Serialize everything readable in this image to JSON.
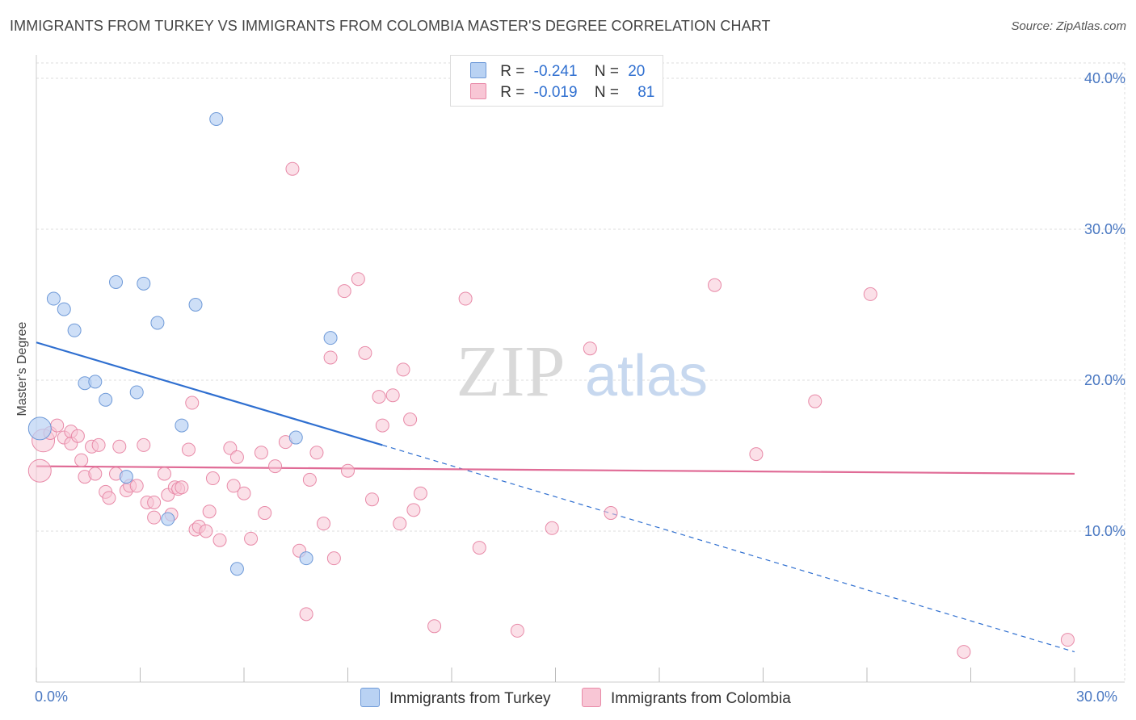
{
  "title": "IMMIGRANTS FROM TURKEY VS IMMIGRANTS FROM COLOMBIA MASTER'S DEGREE CORRELATION CHART",
  "source": "Source: ZipAtlas.com",
  "watermark": {
    "zip": "ZIP",
    "atlas": "atlas"
  },
  "colors": {
    "turkey_fill": "#b9d2f3",
    "turkey_stroke": "#6f9ad8",
    "turkey_line": "#2f6fd0",
    "colombia_fill": "#f8c6d5",
    "colombia_stroke": "#e88aa8",
    "colombia_line": "#e06b96",
    "grid": "#dddddd",
    "tick_text": "#4a78c2"
  },
  "legend": {
    "turkey": {
      "r_label": "R =",
      "r_value": "-0.241",
      "n_label": "N =",
      "n_value": "20"
    },
    "colombia": {
      "r_label": "R =",
      "r_value": "-0.019",
      "n_label": "N =",
      "n_value": "81"
    }
  },
  "chart_data": {
    "type": "scatter",
    "ylabel": "Master's Degree",
    "xlabel": "",
    "xlim": [
      0,
      30
    ],
    "ylim": [
      0,
      40
    ],
    "x_tick_labels": [
      "0.0%",
      "30.0%"
    ],
    "y_ticks": [
      10,
      20,
      30,
      40
    ],
    "y_tick_labels": [
      "10.0%",
      "20.0%",
      "30.0%",
      "40.0%"
    ],
    "grid": true,
    "legend_position": "top-center and bottom",
    "series": [
      {
        "name": "Immigrants from Turkey",
        "points": [
          [
            0.1,
            16.8
          ],
          [
            0.5,
            25.4
          ],
          [
            0.8,
            24.7
          ],
          [
            1.1,
            23.3
          ],
          [
            1.4,
            19.8
          ],
          [
            1.7,
            19.9
          ],
          [
            2.0,
            18.7
          ],
          [
            2.3,
            26.5
          ],
          [
            2.6,
            13.6
          ],
          [
            2.9,
            19.2
          ],
          [
            3.1,
            26.4
          ],
          [
            3.5,
            23.8
          ],
          [
            3.8,
            10.8
          ],
          [
            4.2,
            17.0
          ],
          [
            4.6,
            25.0
          ],
          [
            5.2,
            37.3
          ],
          [
            5.8,
            7.5
          ],
          [
            7.5,
            16.2
          ],
          [
            7.8,
            8.2
          ],
          [
            8.5,
            22.8
          ]
        ],
        "trend": {
          "x0": 0,
          "y0": 22.5,
          "x1": 10,
          "y1": 15.7,
          "dashed_to_x": 30,
          "dashed_to_y": 2.0
        }
      },
      {
        "name": "Immigrants from Colombia",
        "points": [
          [
            0.1,
            14.0
          ],
          [
            0.2,
            16.0
          ],
          [
            0.4,
            16.5
          ],
          [
            0.6,
            17.0
          ],
          [
            0.8,
            16.2
          ],
          [
            1.0,
            16.6
          ],
          [
            1.0,
            15.8
          ],
          [
            1.2,
            16.3
          ],
          [
            1.3,
            14.7
          ],
          [
            1.4,
            13.6
          ],
          [
            1.6,
            15.6
          ],
          [
            1.7,
            13.8
          ],
          [
            1.8,
            15.7
          ],
          [
            2.0,
            12.6
          ],
          [
            2.1,
            12.2
          ],
          [
            2.3,
            13.8
          ],
          [
            2.4,
            15.6
          ],
          [
            2.6,
            12.7
          ],
          [
            2.7,
            13.0
          ],
          [
            2.9,
            13.0
          ],
          [
            3.1,
            15.7
          ],
          [
            3.2,
            11.9
          ],
          [
            3.4,
            11.9
          ],
          [
            3.4,
            10.9
          ],
          [
            3.7,
            13.8
          ],
          [
            3.8,
            12.4
          ],
          [
            3.9,
            11.1
          ],
          [
            4.0,
            12.9
          ],
          [
            4.1,
            12.8
          ],
          [
            4.2,
            12.9
          ],
          [
            4.4,
            15.4
          ],
          [
            4.5,
            18.5
          ],
          [
            4.6,
            10.1
          ],
          [
            4.7,
            10.3
          ],
          [
            4.9,
            10.0
          ],
          [
            5.0,
            11.3
          ],
          [
            5.1,
            13.5
          ],
          [
            5.3,
            9.4
          ],
          [
            5.6,
            15.5
          ],
          [
            5.7,
            13.0
          ],
          [
            5.8,
            14.9
          ],
          [
            6.0,
            12.5
          ],
          [
            6.2,
            9.5
          ],
          [
            6.5,
            15.2
          ],
          [
            6.6,
            11.2
          ],
          [
            6.9,
            14.3
          ],
          [
            7.2,
            15.9
          ],
          [
            7.4,
            34.0
          ],
          [
            7.6,
            8.7
          ],
          [
            7.8,
            4.5
          ],
          [
            7.9,
            13.4
          ],
          [
            8.1,
            15.2
          ],
          [
            8.3,
            10.5
          ],
          [
            8.5,
            21.5
          ],
          [
            8.6,
            8.2
          ],
          [
            8.9,
            25.9
          ],
          [
            9.0,
            14.0
          ],
          [
            9.3,
            26.7
          ],
          [
            9.5,
            21.8
          ],
          [
            9.7,
            12.1
          ],
          [
            9.9,
            18.9
          ],
          [
            10.0,
            17.0
          ],
          [
            10.3,
            19.0
          ],
          [
            10.5,
            10.5
          ],
          [
            10.6,
            20.7
          ],
          [
            10.8,
            17.4
          ],
          [
            10.9,
            11.4
          ],
          [
            11.1,
            12.5
          ],
          [
            11.5,
            3.7
          ],
          [
            12.4,
            25.4
          ],
          [
            12.8,
            8.9
          ],
          [
            13.9,
            3.4
          ],
          [
            14.9,
            10.2
          ],
          [
            16.0,
            22.1
          ],
          [
            16.6,
            11.2
          ],
          [
            19.6,
            26.3
          ],
          [
            20.8,
            15.1
          ],
          [
            22.5,
            18.6
          ],
          [
            24.1,
            25.7
          ],
          [
            26.8,
            2.0
          ],
          [
            29.8,
            2.8
          ]
        ],
        "trend": {
          "x0": 0,
          "y0": 14.3,
          "x1": 30,
          "y1": 13.8
        }
      }
    ]
  },
  "bottom_legend": {
    "turkey_label": "Immigrants from Turkey",
    "colombia_label": "Immigrants from Colombia"
  }
}
